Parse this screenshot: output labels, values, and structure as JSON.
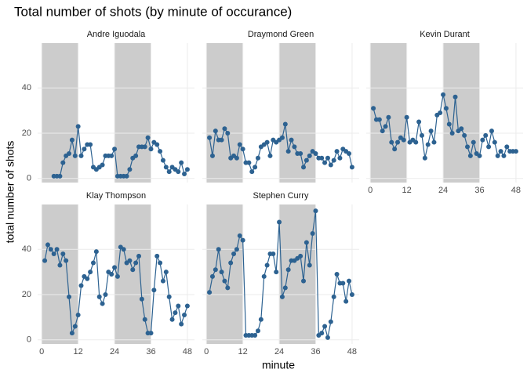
{
  "chart_data": {
    "type": "line",
    "title": "Total number of shots (by minute of occurance)",
    "xlabel": "minute",
    "ylabel": "total number of shots",
    "xlim": [
      -1.35,
      50.35
    ],
    "ylim": [
      -1.8,
      59.8
    ],
    "xticks": [
      0,
      12,
      24,
      36,
      48
    ],
    "yticks": [
      0,
      20,
      40
    ],
    "grid": true,
    "shaded": [
      [
        0,
        12
      ],
      [
        24,
        36
      ]
    ],
    "shade_color": "#cccccc",
    "color": "#2d6291",
    "series": [
      {
        "name": "Andre Iguodala",
        "x": [
          4,
          5,
          6,
          7,
          8,
          9,
          10,
          11,
          12,
          13,
          14,
          15,
          16,
          17,
          18,
          19,
          20,
          21,
          22,
          23,
          24,
          25,
          26,
          27,
          28,
          29,
          30,
          31,
          32,
          33,
          34,
          35,
          36,
          37,
          38,
          39,
          40,
          41,
          42,
          43,
          44,
          45,
          46,
          47,
          48
        ],
        "values": [
          1,
          1,
          1,
          7,
          10,
          11,
          17,
          10,
          23,
          10,
          13,
          15,
          15,
          5,
          4,
          5,
          6,
          10,
          10,
          10,
          13,
          1,
          1,
          1,
          1,
          4,
          9,
          10,
          14,
          14,
          14,
          18,
          13,
          16,
          15,
          12,
          8,
          5,
          3,
          5,
          4,
          3,
          7,
          2,
          4
        ]
      },
      {
        "name": "Draymond Green",
        "x": [
          1,
          2,
          3,
          4,
          5,
          6,
          7,
          8,
          9,
          10,
          11,
          12,
          13,
          14,
          15,
          16,
          17,
          18,
          19,
          20,
          21,
          22,
          23,
          24,
          25,
          26,
          27,
          28,
          29,
          30,
          31,
          32,
          33,
          34,
          35,
          36,
          37,
          38,
          39,
          40,
          41,
          42,
          43,
          44,
          45,
          46,
          47,
          48
        ],
        "values": [
          18,
          10,
          21,
          17,
          17,
          22,
          20,
          9,
          10,
          9,
          15,
          13,
          7,
          7,
          3,
          5,
          9,
          14,
          15,
          16,
          10,
          17,
          16,
          17,
          18,
          24,
          12,
          17,
          14,
          11,
          11,
          5,
          8,
          10,
          12,
          11,
          9,
          9,
          7,
          9,
          6,
          8,
          12,
          9,
          13,
          12,
          11,
          5
        ]
      },
      {
        "name": "Kevin Durant",
        "x": [
          1,
          2,
          3,
          4,
          5,
          6,
          7,
          8,
          9,
          10,
          11,
          12,
          13,
          14,
          15,
          16,
          17,
          18,
          19,
          20,
          21,
          22,
          23,
          24,
          25,
          26,
          27,
          28,
          29,
          30,
          31,
          32,
          33,
          34,
          35,
          36,
          37,
          38,
          39,
          40,
          41,
          42,
          43,
          44,
          45,
          46,
          47,
          48
        ],
        "values": [
          31,
          26,
          26,
          21,
          23,
          27,
          16,
          13,
          16,
          18,
          17,
          27,
          16,
          17,
          16,
          25,
          19,
          9,
          15,
          21,
          16,
          28,
          29,
          37,
          31,
          24,
          20,
          36,
          21,
          22,
          19,
          14,
          10,
          16,
          11,
          10,
          17,
          19,
          14,
          21,
          16,
          10,
          12,
          10,
          14,
          12,
          12,
          12
        ]
      },
      {
        "name": "Klay Thompson",
        "x": [
          1,
          2,
          3,
          4,
          5,
          6,
          7,
          8,
          9,
          10,
          11,
          12,
          13,
          14,
          15,
          16,
          17,
          18,
          19,
          20,
          21,
          22,
          23,
          24,
          25,
          26,
          27,
          28,
          29,
          30,
          31,
          32,
          33,
          34,
          35,
          36,
          37,
          38,
          39,
          40,
          41,
          42,
          43,
          44,
          45,
          46,
          47,
          48
        ],
        "values": [
          35,
          42,
          40,
          38,
          40,
          33,
          38,
          35,
          19,
          3,
          6,
          11,
          24,
          28,
          27,
          30,
          34,
          39,
          19,
          16,
          20,
          30,
          29,
          32,
          28,
          41,
          40,
          34,
          35,
          31,
          34,
          37,
          18,
          9,
          3,
          3,
          22,
          37,
          34,
          26,
          30,
          19,
          9,
          12,
          15,
          7,
          11,
          15
        ]
      },
      {
        "name": "Stephen Curry",
        "x": [
          1,
          2,
          3,
          4,
          5,
          6,
          7,
          8,
          9,
          10,
          11,
          12,
          13,
          14,
          15,
          16,
          17,
          18,
          19,
          20,
          21,
          22,
          23,
          24,
          25,
          26,
          27,
          28,
          29,
          30,
          31,
          32,
          33,
          34,
          35,
          36,
          37,
          38,
          39,
          40,
          41,
          42,
          43,
          44,
          45,
          46,
          47,
          48
        ],
        "values": [
          21,
          28,
          31,
          40,
          30,
          26,
          23,
          34,
          38,
          40,
          46,
          44,
          2,
          2,
          2,
          2,
          4,
          9,
          28,
          33,
          38,
          38,
          30,
          52,
          19,
          23,
          31,
          35,
          35,
          36,
          37,
          26,
          43,
          33,
          47,
          57,
          2,
          3,
          6,
          1,
          8,
          19,
          29,
          25,
          25,
          17,
          26,
          20
        ]
      }
    ]
  }
}
